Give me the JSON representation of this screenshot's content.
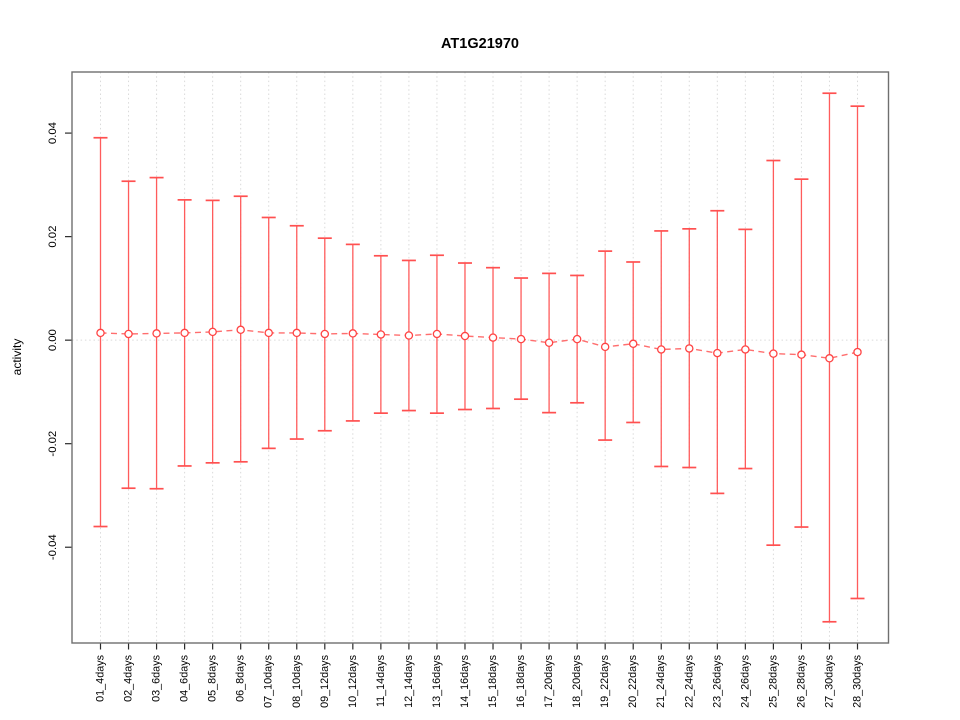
{
  "chart_data": {
    "type": "line",
    "subtype": "points-with-error-bars",
    "title": "AT1G21970",
    "xlabel": "",
    "ylabel": "activity",
    "categories": [
      "01_4days",
      "02_4days",
      "03_6days",
      "04_6days",
      "05_8days",
      "06_8days",
      "07_10days",
      "08_10days",
      "09_12days",
      "10_12days",
      "11_14days",
      "12_14days",
      "13_16days",
      "14_16days",
      "15_18days",
      "16_18days",
      "17_20days",
      "18_20days",
      "19_22days",
      "20_22days",
      "21_24days",
      "22_24days",
      "23_26days",
      "24_26days",
      "25_28days",
      "26_28days",
      "27_30days",
      "28_30days"
    ],
    "series": [
      {
        "name": "activity",
        "values": [
          0.0014,
          0.0012,
          0.0013,
          0.0014,
          0.0016,
          0.002,
          0.0014,
          0.0014,
          0.0012,
          0.0013,
          0.0011,
          0.0009,
          0.0012,
          0.0008,
          0.0005,
          0.0002,
          -0.0005,
          0.0002,
          -0.0013,
          -0.0007,
          -0.0018,
          -0.0016,
          -0.0025,
          -0.0018,
          -0.0026,
          -0.0028,
          -0.0035,
          -0.0023
        ],
        "upper": [
          0.0391,
          0.0307,
          0.0314,
          0.0271,
          0.027,
          0.0278,
          0.0237,
          0.0221,
          0.0197,
          0.0185,
          0.0163,
          0.0154,
          0.0164,
          0.0149,
          0.014,
          0.012,
          0.0129,
          0.0125,
          0.0172,
          0.0151,
          0.0211,
          0.0215,
          0.025,
          0.0214,
          0.0347,
          0.0311,
          0.0477,
          0.0452
        ],
        "lower": [
          -0.036,
          -0.0286,
          -0.0287,
          -0.0243,
          -0.0237,
          -0.0235,
          -0.0209,
          -0.0191,
          -0.0175,
          -0.0156,
          -0.0141,
          -0.0136,
          -0.0141,
          -0.0134,
          -0.0132,
          -0.0114,
          -0.014,
          -0.0121,
          -0.0193,
          -0.0159,
          -0.0244,
          -0.0246,
          -0.0296,
          -0.0248,
          -0.0396,
          -0.0361,
          -0.0544,
          -0.0499
        ]
      }
    ],
    "ylim": [
      -0.0585,
      0.0518
    ],
    "yticks": {
      "values": [
        -0.04,
        -0.02,
        0.0,
        0.02,
        0.04
      ],
      "labels": [
        "-0.04",
        "-0.02",
        "0.00",
        "0.02",
        "0.04"
      ]
    },
    "grid": {
      "vertical": "dotted line at every category",
      "zero_line": "dotted horizontal at 0.00"
    },
    "legend_position": "none",
    "colors": {
      "error_bar": "#ff5c5c",
      "cap": "#ff5050",
      "point_stroke": "#ff4444",
      "point_fill": "#ffffff",
      "dash_line": "#ff6e6e",
      "grid_line": "#dadada",
      "axis_box": "#6f6f6f",
      "tick": "#2b2b2b",
      "text": "#000000",
      "background": "#ffffff"
    }
  }
}
